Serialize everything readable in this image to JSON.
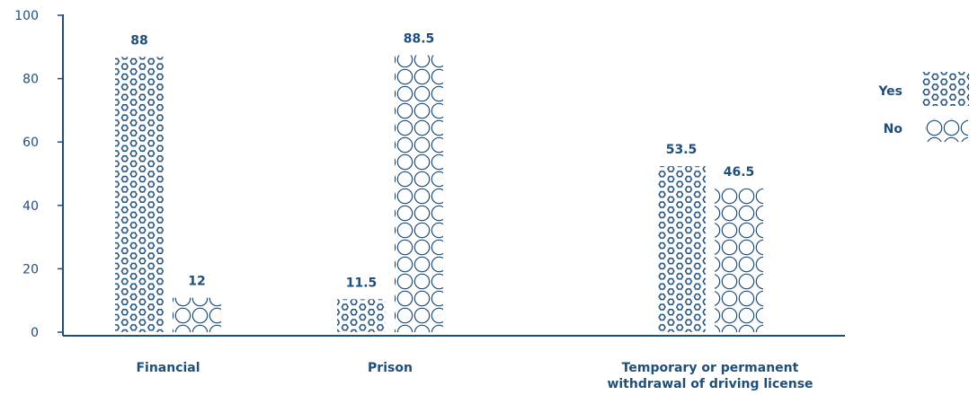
{
  "colors": {
    "accent": "#1f4e79",
    "background": "#ffffff"
  },
  "chart_data": {
    "type": "bar",
    "categories": [
      [
        "Financial"
      ],
      [
        "Prison"
      ],
      [
        "Temporary or permanent",
        "withdrawal of driving license"
      ]
    ],
    "series": [
      {
        "name": "Yes",
        "pattern": "hexagons",
        "values": [
          88,
          11.5,
          53.5
        ]
      },
      {
        "name": "No",
        "pattern": "circles",
        "values": [
          12,
          88.5,
          46.5
        ]
      }
    ],
    "data_labels": [
      [
        "88",
        "11.5",
        "53.5"
      ],
      [
        "12",
        "88.5",
        "46.5"
      ]
    ],
    "yticks": [
      0,
      20,
      40,
      60,
      80,
      100
    ],
    "ylim": [
      0,
      100
    ],
    "title": "",
    "xlabel": "",
    "ylabel": "",
    "grid": false,
    "legend": "right"
  }
}
